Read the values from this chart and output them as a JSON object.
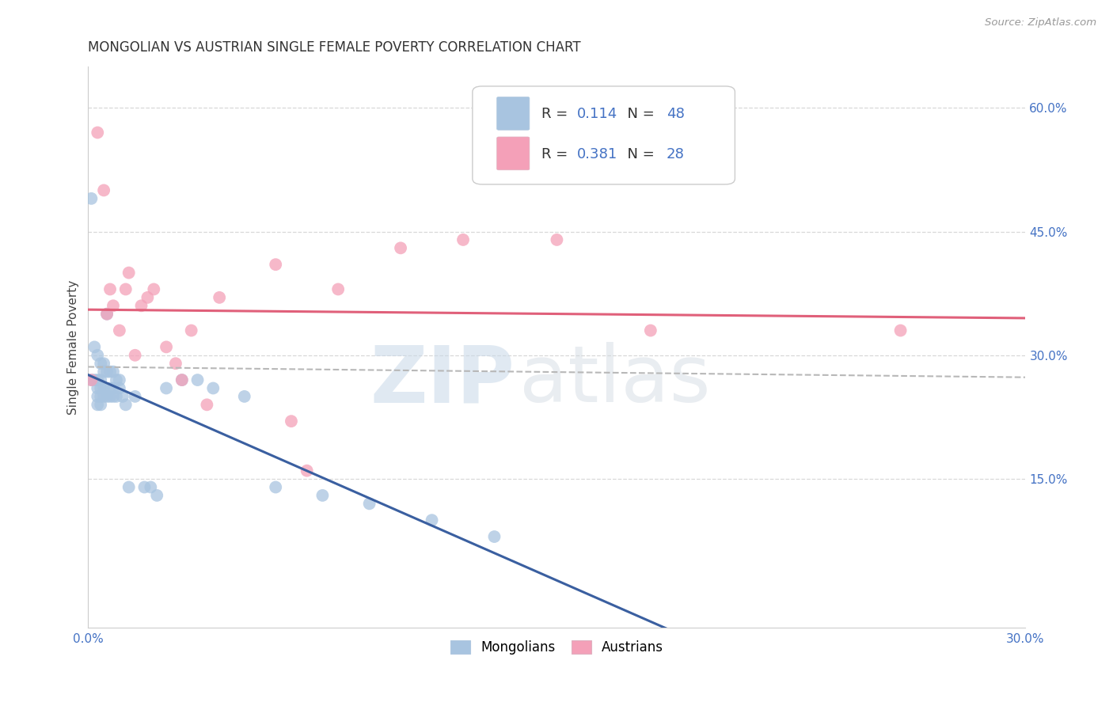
{
  "title": "MONGOLIAN VS AUSTRIAN SINGLE FEMALE POVERTY CORRELATION CHART",
  "source": "Source: ZipAtlas.com",
  "ylabel": "Single Female Poverty",
  "watermark_zip": "ZIP",
  "watermark_atlas": "atlas",
  "mongolian_R": 0.114,
  "mongolian_N": 48,
  "austrian_R": 0.381,
  "austrian_N": 28,
  "x_min": 0.0,
  "x_max": 0.3,
  "y_min": -0.03,
  "y_max": 0.65,
  "x_ticks": [
    0.0,
    0.05,
    0.1,
    0.15,
    0.2,
    0.25,
    0.3
  ],
  "x_tick_labels": [
    "0.0%",
    "",
    "",
    "",
    "",
    "",
    "30.0%"
  ],
  "y_ticks_right": [
    0.15,
    0.3,
    0.45,
    0.6
  ],
  "y_tick_labels_right": [
    "15.0%",
    "30.0%",
    "45.0%",
    "60.0%"
  ],
  "mongolian_color": "#a8c4e0",
  "austrian_color": "#f4a0b8",
  "mongolian_line_color": "#3a5fa0",
  "austrian_line_color": "#e0607a",
  "combined_line_color": "#b8b8b8",
  "background_color": "#ffffff",
  "grid_color": "#d8d8d8",
  "mongolian_x": [
    0.001,
    0.001,
    0.002,
    0.002,
    0.003,
    0.003,
    0.003,
    0.003,
    0.003,
    0.004,
    0.004,
    0.004,
    0.004,
    0.004,
    0.005,
    0.005,
    0.005,
    0.005,
    0.006,
    0.006,
    0.006,
    0.007,
    0.007,
    0.007,
    0.008,
    0.008,
    0.008,
    0.009,
    0.009,
    0.01,
    0.01,
    0.011,
    0.012,
    0.013,
    0.015,
    0.018,
    0.02,
    0.022,
    0.025,
    0.03,
    0.035,
    0.04,
    0.05,
    0.06,
    0.075,
    0.09,
    0.11,
    0.13
  ],
  "mongolian_y": [
    0.49,
    0.27,
    0.31,
    0.27,
    0.3,
    0.27,
    0.26,
    0.25,
    0.24,
    0.29,
    0.27,
    0.26,
    0.25,
    0.24,
    0.29,
    0.28,
    0.26,
    0.25,
    0.35,
    0.28,
    0.25,
    0.28,
    0.26,
    0.25,
    0.28,
    0.26,
    0.25,
    0.27,
    0.25,
    0.27,
    0.26,
    0.25,
    0.24,
    0.14,
    0.25,
    0.14,
    0.14,
    0.13,
    0.26,
    0.27,
    0.27,
    0.26,
    0.25,
    0.14,
    0.13,
    0.12,
    0.1,
    0.08
  ],
  "austrian_x": [
    0.001,
    0.003,
    0.005,
    0.006,
    0.007,
    0.008,
    0.01,
    0.012,
    0.013,
    0.015,
    0.017,
    0.019,
    0.021,
    0.025,
    0.028,
    0.03,
    0.033,
    0.038,
    0.042,
    0.06,
    0.065,
    0.07,
    0.08,
    0.1,
    0.12,
    0.15,
    0.18,
    0.26
  ],
  "austrian_y": [
    0.27,
    0.57,
    0.5,
    0.35,
    0.38,
    0.36,
    0.33,
    0.38,
    0.4,
    0.3,
    0.36,
    0.37,
    0.38,
    0.31,
    0.29,
    0.27,
    0.33,
    0.24,
    0.37,
    0.41,
    0.22,
    0.16,
    0.38,
    0.43,
    0.44,
    0.44,
    0.33,
    0.33
  ]
}
